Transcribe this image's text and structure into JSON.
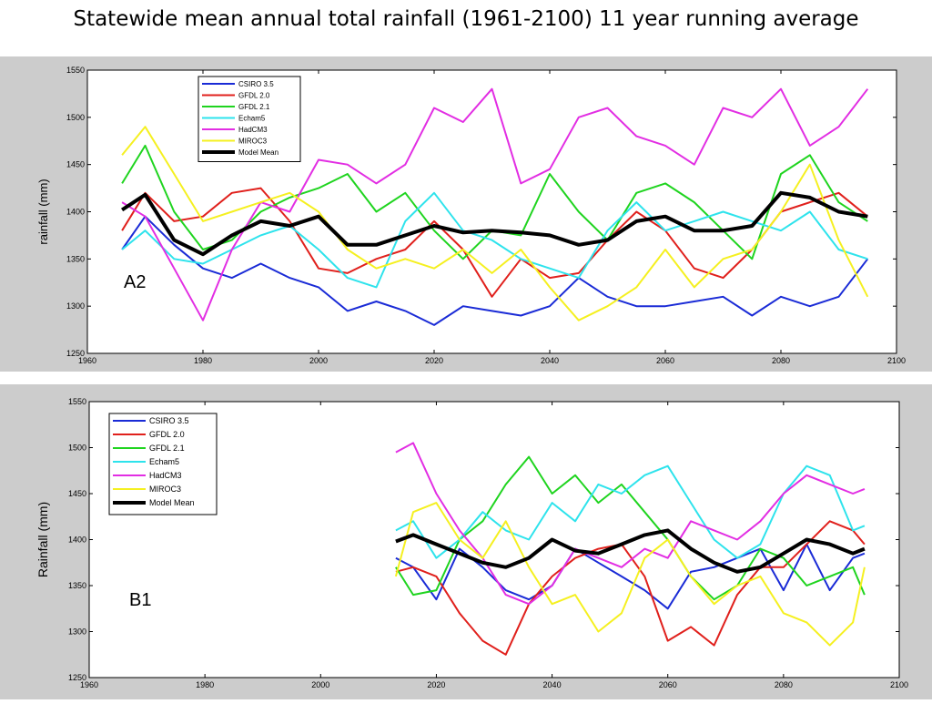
{
  "title": "Statewide mean annual total rainfall (1961-2100) 11 year running average",
  "colors": {
    "CSIRO 3.5": "#1a2bd6",
    "GFDL 2.0": "#e0201c",
    "GFDL 2.1": "#1fd41f",
    "Echam5": "#2ee3ec",
    "HadCM3": "#e22ee3",
    "MIROC3": "#f5f020",
    "Model Mean": "#000000"
  },
  "chart_data": [
    {
      "type": "line",
      "label": "A2",
      "xlabel": "",
      "ylabel": "rainfall (mm)",
      "xlim": [
        1960,
        2100
      ],
      "ylim": [
        1250,
        1550
      ],
      "xticks": [
        1960,
        1980,
        2000,
        2020,
        2040,
        2060,
        2080,
        2100
      ],
      "yticks": [
        1250,
        1300,
        1350,
        1400,
        1450,
        1500,
        1550
      ],
      "grid": false,
      "legend": "top-left",
      "series": [
        {
          "name": "CSIRO 3.5",
          "x": [
            1966,
            1970,
            1975,
            1980,
            1985,
            1990,
            1995,
            2000,
            2005,
            2010,
            2015,
            2020,
            2025,
            2030,
            2035,
            2040,
            2045,
            2050,
            2055,
            2060,
            2065,
            2070,
            2075,
            2080,
            2085,
            2090,
            2095
          ],
          "values": [
            1360,
            1395,
            1365,
            1340,
            1330,
            1345,
            1330,
            1320,
            1295,
            1305,
            1295,
            1280,
            1300,
            1295,
            1290,
            1300,
            1330,
            1310,
            1300,
            1300,
            1305,
            1310,
            1290,
            1310,
            1300,
            1310,
            1350
          ]
        },
        {
          "name": "GFDL 2.0",
          "x": [
            1966,
            1970,
            1975,
            1980,
            1985,
            1990,
            1995,
            2000,
            2005,
            2010,
            2015,
            2020,
            2025,
            2030,
            2035,
            2040,
            2045,
            2050,
            2055,
            2060,
            2065,
            2070,
            2075,
            2080,
            2085,
            2090,
            2095
          ],
          "values": [
            1380,
            1420,
            1390,
            1395,
            1420,
            1425,
            1390,
            1340,
            1335,
            1350,
            1360,
            1390,
            1360,
            1310,
            1350,
            1330,
            1335,
            1370,
            1400,
            1380,
            1340,
            1330,
            1360,
            1400,
            1410,
            1420,
            1395
          ]
        },
        {
          "name": "GFDL 2.1",
          "x": [
            1966,
            1970,
            1975,
            1980,
            1985,
            1990,
            1995,
            2000,
            2005,
            2010,
            2015,
            2020,
            2025,
            2030,
            2035,
            2040,
            2045,
            2050,
            2055,
            2060,
            2065,
            2070,
            2075,
            2080,
            2085,
            2090,
            2095
          ],
          "values": [
            1430,
            1470,
            1400,
            1360,
            1370,
            1400,
            1415,
            1425,
            1440,
            1400,
            1420,
            1380,
            1350,
            1380,
            1375,
            1440,
            1400,
            1370,
            1420,
            1430,
            1410,
            1380,
            1350,
            1440,
            1460,
            1410,
            1390
          ]
        },
        {
          "name": "Echam5",
          "x": [
            1966,
            1970,
            1975,
            1980,
            1985,
            1990,
            1995,
            2000,
            2005,
            2010,
            2015,
            2020,
            2025,
            2030,
            2035,
            2040,
            2045,
            2050,
            2055,
            2060,
            2065,
            2070,
            2075,
            2080,
            2085,
            2090,
            2095
          ],
          "values": [
            1360,
            1380,
            1350,
            1345,
            1360,
            1375,
            1385,
            1360,
            1330,
            1320,
            1390,
            1420,
            1380,
            1370,
            1350,
            1340,
            1330,
            1380,
            1410,
            1380,
            1390,
            1400,
            1390,
            1380,
            1400,
            1360,
            1350
          ]
        },
        {
          "name": "HadCM3",
          "x": [
            1966,
            1970,
            1975,
            1980,
            1985,
            1990,
            1995,
            2000,
            2005,
            2010,
            2015,
            2020,
            2025,
            2030,
            2035,
            2040,
            2045,
            2050,
            2055,
            2060,
            2065,
            2070,
            2075,
            2080,
            2085,
            2090,
            2095
          ],
          "values": [
            1410,
            1395,
            1340,
            1285,
            1360,
            1410,
            1400,
            1455,
            1450,
            1430,
            1450,
            1510,
            1495,
            1530,
            1430,
            1445,
            1500,
            1510,
            1480,
            1470,
            1450,
            1510,
            1500,
            1530,
            1470,
            1490,
            1530
          ]
        },
        {
          "name": "MIROC3",
          "x": [
            1966,
            1970,
            1975,
            1980,
            1985,
            1990,
            1995,
            2000,
            2005,
            2010,
            2015,
            2020,
            2025,
            2030,
            2035,
            2040,
            2045,
            2050,
            2055,
            2060,
            2065,
            2070,
            2075,
            2080,
            2085,
            2090,
            2095
          ],
          "values": [
            1460,
            1490,
            1440,
            1390,
            1400,
            1410,
            1420,
            1400,
            1360,
            1340,
            1350,
            1340,
            1360,
            1335,
            1360,
            1320,
            1285,
            1300,
            1320,
            1360,
            1320,
            1350,
            1360,
            1400,
            1450,
            1370,
            1310
          ]
        },
        {
          "name": "Model Mean",
          "x": [
            1966,
            1970,
            1975,
            1980,
            1985,
            1990,
            1995,
            2000,
            2005,
            2010,
            2015,
            2020,
            2025,
            2030,
            2035,
            2040,
            2045,
            2050,
            2055,
            2060,
            2065,
            2070,
            2075,
            2080,
            2085,
            2090,
            2095
          ],
          "values": [
            1402,
            1418,
            1370,
            1355,
            1375,
            1390,
            1385,
            1395,
            1365,
            1365,
            1375,
            1385,
            1378,
            1380,
            1378,
            1375,
            1365,
            1370,
            1390,
            1395,
            1380,
            1380,
            1385,
            1420,
            1415,
            1400,
            1395
          ]
        }
      ]
    },
    {
      "type": "line",
      "label": "B1",
      "xlabel": "",
      "ylabel": "Rainfall (mm)",
      "xlim": [
        1960,
        2100
      ],
      "ylim": [
        1250,
        1550
      ],
      "xticks": [
        1960,
        1980,
        2000,
        2020,
        2040,
        2060,
        2080,
        2100
      ],
      "yticks": [
        1250,
        1300,
        1350,
        1400,
        1450,
        1500,
        1550
      ],
      "grid": false,
      "legend": "top-left",
      "series": [
        {
          "name": "CSIRO 3.5",
          "x": [
            2013,
            2016,
            2020,
            2024,
            2028,
            2032,
            2036,
            2040,
            2044,
            2048,
            2052,
            2056,
            2060,
            2064,
            2068,
            2072,
            2076,
            2080,
            2084,
            2088,
            2092,
            2094
          ],
          "values": [
            1380,
            1370,
            1335,
            1390,
            1370,
            1345,
            1335,
            1350,
            1390,
            1375,
            1360,
            1345,
            1325,
            1365,
            1370,
            1380,
            1390,
            1345,
            1395,
            1345,
            1380,
            1385
          ]
        },
        {
          "name": "GFDL 2.0",
          "x": [
            2013,
            2016,
            2020,
            2024,
            2028,
            2032,
            2036,
            2040,
            2044,
            2048,
            2052,
            2056,
            2060,
            2064,
            2068,
            2072,
            2076,
            2080,
            2084,
            2088,
            2092,
            2094
          ],
          "values": [
            1365,
            1370,
            1360,
            1320,
            1290,
            1275,
            1330,
            1360,
            1380,
            1390,
            1395,
            1360,
            1290,
            1305,
            1285,
            1340,
            1370,
            1370,
            1395,
            1420,
            1410,
            1395
          ]
        },
        {
          "name": "GFDL 2.1",
          "x": [
            2013,
            2016,
            2020,
            2024,
            2028,
            2032,
            2036,
            2040,
            2044,
            2048,
            2052,
            2056,
            2060,
            2064,
            2068,
            2072,
            2076,
            2080,
            2084,
            2088,
            2092,
            2094
          ],
          "values": [
            1370,
            1340,
            1345,
            1400,
            1420,
            1460,
            1490,
            1450,
            1470,
            1440,
            1460,
            1430,
            1400,
            1360,
            1335,
            1350,
            1390,
            1380,
            1350,
            1360,
            1370,
            1340
          ]
        },
        {
          "name": "Echam5",
          "x": [
            2013,
            2016,
            2020,
            2024,
            2028,
            2032,
            2036,
            2040,
            2044,
            2048,
            2052,
            2056,
            2060,
            2064,
            2068,
            2072,
            2076,
            2080,
            2084,
            2088,
            2092,
            2094
          ],
          "values": [
            1410,
            1420,
            1380,
            1400,
            1430,
            1410,
            1400,
            1440,
            1420,
            1460,
            1450,
            1470,
            1480,
            1440,
            1400,
            1380,
            1395,
            1450,
            1480,
            1470,
            1410,
            1415
          ]
        },
        {
          "name": "HadCM3",
          "x": [
            2013,
            2016,
            2020,
            2024,
            2028,
            2032,
            2036,
            2040,
            2044,
            2048,
            2052,
            2056,
            2060,
            2064,
            2068,
            2072,
            2076,
            2080,
            2084,
            2088,
            2092,
            2094
          ],
          "values": [
            1495,
            1505,
            1450,
            1410,
            1380,
            1340,
            1330,
            1350,
            1390,
            1380,
            1370,
            1390,
            1380,
            1420,
            1410,
            1400,
            1420,
            1450,
            1470,
            1460,
            1450,
            1455
          ]
        },
        {
          "name": "MIROC3",
          "x": [
            2013,
            2016,
            2020,
            2024,
            2028,
            2032,
            2036,
            2040,
            2044,
            2048,
            2052,
            2056,
            2060,
            2064,
            2068,
            2072,
            2076,
            2080,
            2084,
            2088,
            2092,
            2094
          ],
          "values": [
            1360,
            1430,
            1440,
            1400,
            1380,
            1420,
            1370,
            1330,
            1340,
            1300,
            1320,
            1380,
            1400,
            1360,
            1330,
            1350,
            1360,
            1320,
            1310,
            1285,
            1310,
            1370
          ]
        },
        {
          "name": "Model Mean",
          "x": [
            2013,
            2016,
            2020,
            2024,
            2028,
            2032,
            2036,
            2040,
            2044,
            2048,
            2052,
            2056,
            2060,
            2064,
            2068,
            2072,
            2076,
            2080,
            2084,
            2088,
            2092,
            2094
          ],
          "values": [
            1398,
            1405,
            1395,
            1385,
            1375,
            1370,
            1380,
            1400,
            1388,
            1385,
            1395,
            1405,
            1410,
            1390,
            1375,
            1365,
            1370,
            1385,
            1400,
            1395,
            1385,
            1390
          ]
        }
      ]
    }
  ]
}
